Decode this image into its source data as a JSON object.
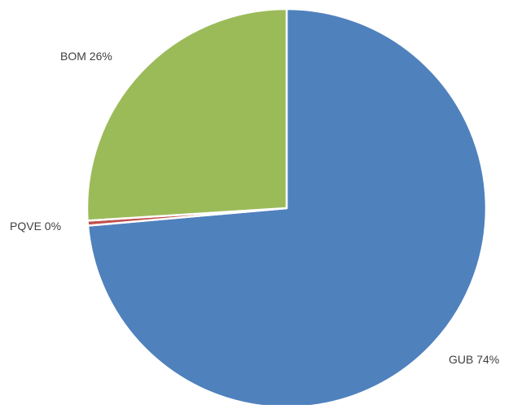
{
  "chart_data": {
    "type": "pie",
    "start_angle_deg": 0,
    "direction": "clockwise",
    "slices": [
      {
        "label": "GUB",
        "value": 73.6,
        "display": "GUB 74%",
        "color": "#4F81BD"
      },
      {
        "label": "PQVE",
        "value": 0.4,
        "display": "PQVE 0%",
        "color": "#C0504D"
      },
      {
        "label": "BOM",
        "value": 26.0,
        "display": "BOM 26%",
        "color": "#9BBB59"
      }
    ],
    "slice_border_color": "#FFFFFF",
    "legend": "none"
  }
}
